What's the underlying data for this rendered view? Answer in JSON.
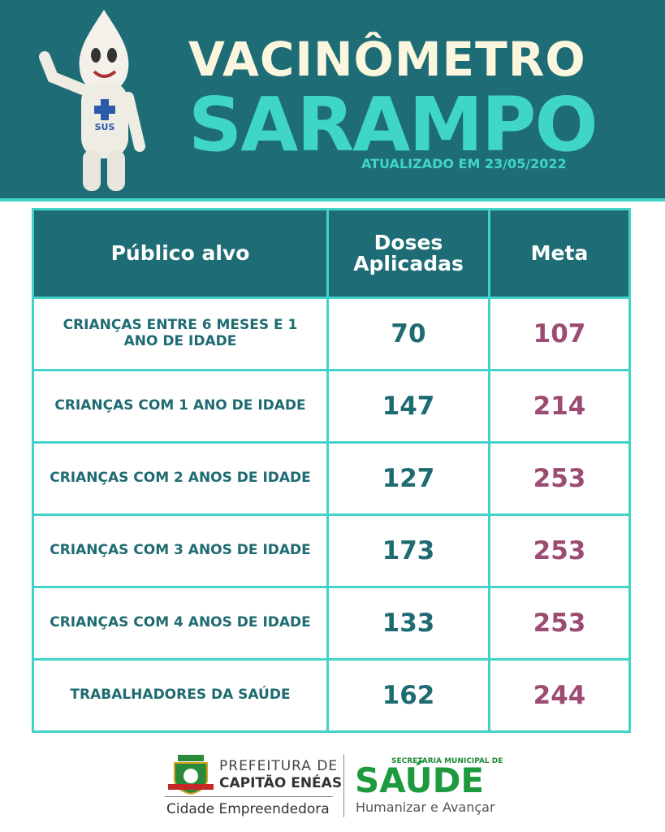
{
  "header": {
    "title": "VACINÔMETRO",
    "subtitle": "SARAMPO",
    "updated": "ATUALIZADO EM 23/05/2022",
    "mascot_label": "SUS"
  },
  "table": {
    "columns": [
      "Público alvo",
      "Doses Aplicadas",
      "Meta"
    ],
    "rows": [
      [
        "CRIANÇAS ENTRE 6 MESES E 1 ANO DE IDADE",
        70,
        107
      ],
      [
        "CRIANÇAS COM 1 ANO DE IDADE",
        147,
        214
      ],
      [
        "CRIANÇAS COM 2 ANOS DE IDADE",
        127,
        253
      ],
      [
        "CRIANÇAS COM 3 ANOS DE IDADE",
        173,
        253
      ],
      [
        "CRIANÇAS COM 4 ANOS DE IDADE",
        133,
        253
      ],
      [
        "TRABALHADORES DA SAÚDE",
        162,
        244
      ]
    ]
  },
  "footer": {
    "city_line1": "PREFEITURA DE",
    "city_line2": "CAPITÃO ENÉAS",
    "city_slogan": "Cidade Empreendedora",
    "health_dept": "SECRETARIA MUNICIPAL DE",
    "health_name": "SAÚDE",
    "health_slogan": "Humanizar e Avançar"
  }
}
